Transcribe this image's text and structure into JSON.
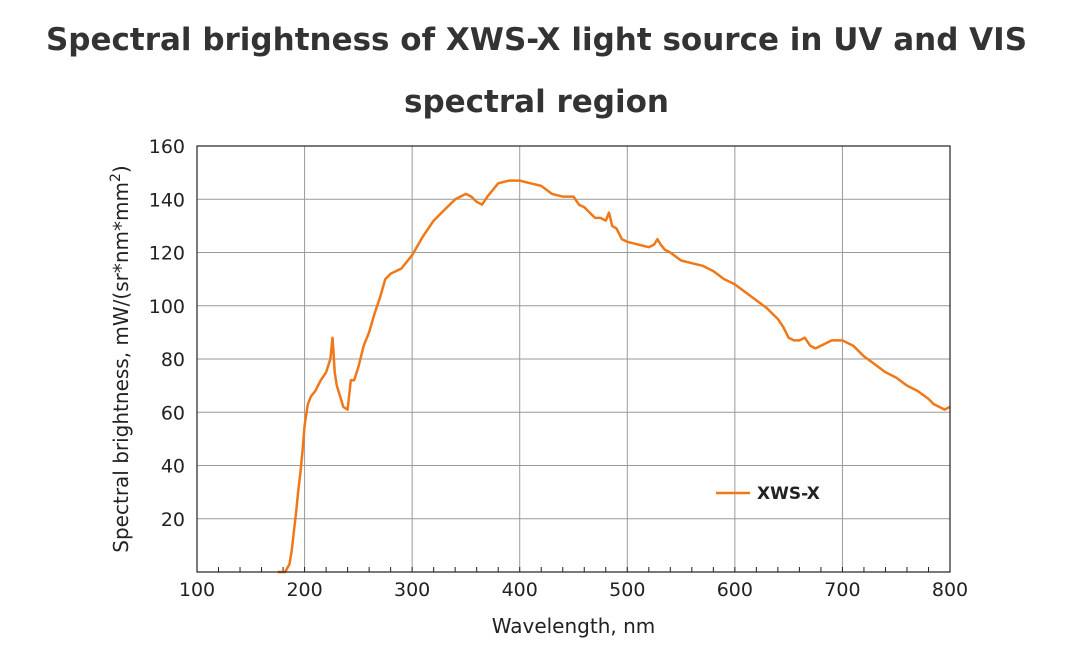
{
  "title_line1": "Spectral brightness of XWS-X light source in UV and VIS",
  "title_line2": "spectral region",
  "chart_data": {
    "type": "line",
    "title": "Spectral brightness of XWS-X light source in UV and VIS spectral region",
    "xlabel": "Wavelength, nm",
    "ylabel_main": "Spectral brightness, mW/(sr*nm*mm",
    "ylabel_sup": "2",
    "ylabel_close": ")",
    "xlim": [
      100,
      800
    ],
    "ylim": [
      0,
      160
    ],
    "xticks": [
      100,
      200,
      300,
      400,
      500,
      600,
      700,
      800
    ],
    "yticks": [
      20,
      40,
      60,
      80,
      100,
      120,
      140,
      160
    ],
    "grid": true,
    "legend_position": "lower-right",
    "series": [
      {
        "name": "XWS-X",
        "color": "#f07818",
        "x": [
          175,
          182,
          186,
          188,
          190,
          192,
          194,
          196,
          198,
          200,
          203,
          206,
          210,
          215,
          220,
          224,
          226,
          227,
          228,
          230,
          233,
          236,
          240,
          243,
          246,
          250,
          255,
          260,
          265,
          270,
          275,
          280,
          290,
          300,
          310,
          320,
          330,
          340,
          350,
          355,
          360,
          365,
          370,
          380,
          390,
          400,
          410,
          420,
          430,
          440,
          450,
          455,
          460,
          470,
          475,
          480,
          483,
          486,
          490,
          495,
          500,
          510,
          520,
          525,
          528,
          531,
          535,
          540,
          550,
          560,
          570,
          580,
          590,
          600,
          610,
          620,
          630,
          640,
          645,
          650,
          655,
          660,
          665,
          670,
          675,
          680,
          690,
          700,
          710,
          720,
          730,
          740,
          750,
          760,
          770,
          780,
          785,
          790,
          795,
          800
        ],
        "y": [
          0,
          0,
          3,
          8,
          15,
          22,
          30,
          37,
          45,
          55,
          63,
          66,
          68,
          72,
          75,
          80,
          88,
          82,
          75,
          70,
          66,
          62,
          61,
          72,
          72,
          77,
          85,
          90,
          97,
          103,
          110,
          112,
          114,
          119,
          126,
          132,
          136,
          140,
          142,
          141,
          139,
          138,
          141,
          146,
          147,
          147,
          146,
          145,
          142,
          141,
          141,
          138,
          137,
          133,
          133,
          132,
          135,
          130,
          129,
          125,
          124,
          123,
          122,
          123,
          125,
          123,
          121,
          120,
          117,
          116,
          115,
          113,
          110,
          108,
          105,
          102,
          99,
          95,
          92,
          88,
          87,
          87,
          88,
          85,
          84,
          85,
          87,
          87,
          85,
          81,
          78,
          75,
          73,
          70,
          68,
          65,
          63,
          62,
          61,
          62
        ]
      }
    ]
  }
}
